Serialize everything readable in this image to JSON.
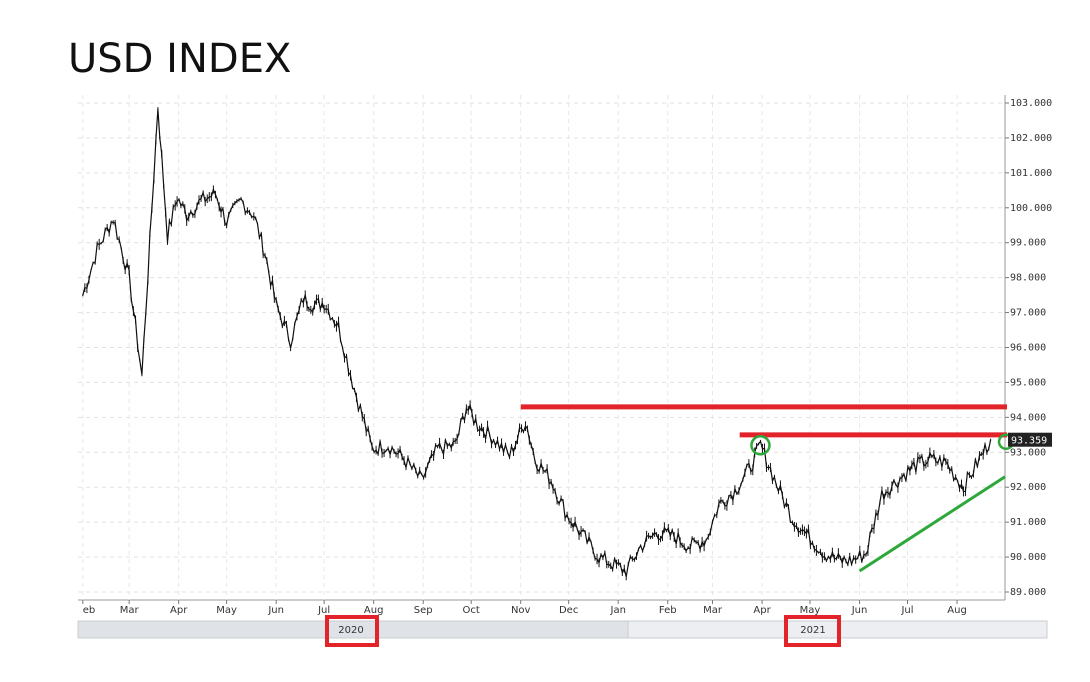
{
  "title": "USD INDEX",
  "chart_data": {
    "type": "line",
    "title": "USD INDEX",
    "ylim": [
      89.0,
      103.0
    ],
    "y_ticks": [
      "103.000",
      "102.000",
      "101.000",
      "100.000",
      "99.000",
      "98.000",
      "97.000",
      "96.000",
      "95.000",
      "94.000",
      "93.000",
      "92.000",
      "91.000",
      "90.000",
      "89.000"
    ],
    "x_ticks": [
      "eb",
      "Mar",
      "Apr",
      "May",
      "Jun",
      "Jul",
      "Aug",
      "Sep",
      "Oct",
      "Nov",
      "Dec",
      "Jan",
      "Feb",
      "Mar",
      "Apr",
      "May",
      "Jun",
      "Jul",
      "Aug"
    ],
    "years": [
      "2020",
      "2021"
    ],
    "last_value_label": "93.359",
    "series": [
      {
        "x": [
          "2020-02-01",
          "2020-02-10",
          "2020-02-20",
          "2020-03-01",
          "2020-03-09",
          "2020-03-19",
          "2020-03-25",
          "2020-03-31",
          "2020-04-06",
          "2020-04-15",
          "2020-04-24",
          "2020-05-01",
          "2020-05-10",
          "2020-05-18",
          "2020-05-25",
          "2020-06-01",
          "2020-06-10",
          "2020-06-18",
          "2020-06-25",
          "2020-07-01",
          "2020-07-10",
          "2020-07-20",
          "2020-07-31",
          "2020-08-10",
          "2020-08-20",
          "2020-08-31",
          "2020-09-10",
          "2020-09-21",
          "2020-09-28",
          "2020-10-05",
          "2020-10-15",
          "2020-10-25",
          "2020-11-04",
          "2020-11-10",
          "2020-11-20",
          "2020-11-30",
          "2020-12-10",
          "2020-12-20",
          "2021-01-06",
          "2021-01-15",
          "2021-01-25",
          "2021-02-05",
          "2021-02-15",
          "2021-02-25",
          "2021-03-05",
          "2021-03-15",
          "2021-03-25",
          "2021-03-31",
          "2021-04-10",
          "2021-04-20",
          "2021-04-30",
          "2021-05-10",
          "2021-05-20",
          "2021-05-27",
          "2021-06-05",
          "2021-06-15",
          "2021-06-25",
          "2021-07-05",
          "2021-07-15",
          "2021-07-25",
          "2021-08-05",
          "2021-08-15",
          "2021-08-22"
        ],
        "values": [
          97.5,
          98.8,
          99.7,
          98.0,
          95.2,
          102.9,
          99.2,
          100.3,
          99.8,
          100.2,
          100.4,
          99.6,
          100.2,
          99.8,
          98.7,
          97.2,
          96.2,
          97.4,
          97.2,
          97.3,
          96.6,
          94.8,
          93.1,
          93.2,
          92.8,
          92.2,
          93.1,
          93.2,
          94.3,
          93.8,
          93.4,
          92.9,
          93.9,
          92.8,
          92.2,
          91.2,
          90.6,
          90.0,
          89.6,
          90.3,
          90.7,
          90.6,
          90.3,
          90.5,
          91.5,
          91.9,
          92.6,
          93.2,
          92.1,
          91.1,
          90.6,
          90.1,
          89.9,
          89.9,
          90.1,
          91.8,
          92.2,
          92.6,
          92.8,
          92.7,
          92.0,
          92.8,
          93.36
        ]
      }
    ],
    "annotations": {
      "resistance_lines": [
        94.3,
        93.5
      ],
      "support_trendline": [
        "2021-06-01",
        89.6,
        "2021-08-31",
        92.3
      ],
      "highlights": [
        "2020",
        "2021"
      ]
    }
  }
}
